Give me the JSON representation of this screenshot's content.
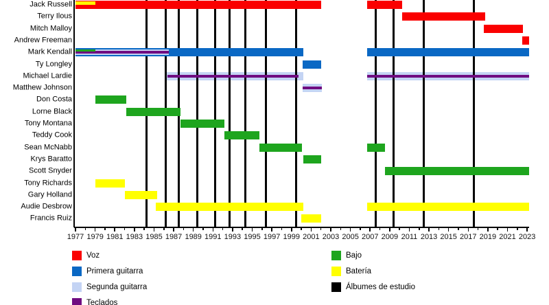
{
  "chart_data": {
    "type": "timeline",
    "title": "",
    "x_axis": {
      "start": 1977,
      "end": 2023.2,
      "label_years": [
        1977,
        1979,
        1981,
        1983,
        1985,
        1987,
        1989,
        1991,
        1993,
        1995,
        1997,
        1999,
        2001,
        2003,
        2005,
        2007,
        2009,
        2011,
        2013,
        2015,
        2017,
        2019,
        2021,
        2023
      ],
      "minor_tick_step": 1
    },
    "colors": {
      "voz": "#fa0000",
      "primera_guitarra": "#0a68c4",
      "segunda_guitarra": "#c4d4f4",
      "teclados": "#6f0c81",
      "bajo": "#1ea51e",
      "bateria": "#ffff00",
      "albumes": "#000000"
    },
    "legend": [
      {
        "label": "Voz",
        "role": "voz"
      },
      {
        "label": "Primera guitarra",
        "role": "primera_guitarra"
      },
      {
        "label": "Segunda guitarra",
        "role": "segunda_guitarra"
      },
      {
        "label": "Teclados",
        "role": "teclados"
      },
      {
        "label": "Bajo",
        "role": "bajo"
      },
      {
        "label": "Batería",
        "role": "bateria"
      },
      {
        "label": "Álbumes de estudio",
        "role": "albumes"
      }
    ],
    "album_lines_years": [
      1984.2,
      1986.2,
      1987.5,
      1989.4,
      1991.2,
      1992.7,
      1994.3,
      1996.4,
      1999.5,
      2007.6,
      2009.4,
      2012.5,
      2017.6
    ],
    "members": [
      {
        "name": "Jack Russell",
        "segments": [
          {
            "role": "voz",
            "start": 1977,
            "end": 2002
          },
          {
            "role": "voz",
            "start": 2006.7,
            "end": 2010.3
          },
          {
            "role": "bateria",
            "start": 1977,
            "end": 1979,
            "band": [
              0.1,
              0.5
            ]
          }
        ]
      },
      {
        "name": "Terry Ilous",
        "segments": [
          {
            "role": "voz",
            "start": 2010.3,
            "end": 2018.7
          }
        ]
      },
      {
        "name": "Mitch Malloy",
        "segments": [
          {
            "role": "voz",
            "start": 2018.6,
            "end": 2022.6
          }
        ]
      },
      {
        "name": "Andrew Freeman",
        "segments": [
          {
            "role": "voz",
            "start": 2022.5,
            "end": 2023.2
          }
        ]
      },
      {
        "name": "Mark Kendall",
        "segments": [
          {
            "role": "primera_guitarra",
            "start": 1977,
            "end": 2000.2
          },
          {
            "role": "segunda_guitarra",
            "start": 1977,
            "end": 1986.5,
            "band": [
              0.17,
              0.83
            ]
          },
          {
            "role": "teclados",
            "start": 1977,
            "end": 1986.5,
            "band": [
              0.33,
              0.67
            ]
          },
          {
            "role": "bajo",
            "start": 1977,
            "end": 1979,
            "band": [
              0.17,
              0.44
            ]
          },
          {
            "role": "primera_guitarra",
            "start": 2006.7,
            "end": 2023.2
          }
        ]
      },
      {
        "name": "Ty Longley",
        "segments": [
          {
            "role": "primera_guitarra",
            "start": 2000.1,
            "end": 2002
          }
        ]
      },
      {
        "name": "Michael Lardie",
        "segments": [
          {
            "role": "segunda_guitarra",
            "start": 1986.1,
            "end": 2000.2,
            "behind_lines": true
          },
          {
            "role": "teclados",
            "start": 1986.4,
            "end": 1999.7,
            "band": [
              0.33,
              0.67
            ]
          },
          {
            "role": "segunda_guitarra",
            "start": 2006.7,
            "end": 2023.2,
            "behind_lines": true
          },
          {
            "role": "teclados",
            "start": 2006.7,
            "end": 2023.2,
            "band": [
              0.33,
              0.67
            ]
          }
        ]
      },
      {
        "name": "Matthew Johnson",
        "segments": [
          {
            "role": "segunda_guitarra",
            "start": 2000.1,
            "end": 2002.1,
            "behind_lines": true
          },
          {
            "role": "teclados",
            "start": 2000.1,
            "end": 2002.1,
            "band": [
              0.33,
              0.67
            ]
          }
        ]
      },
      {
        "name": "Don Costa",
        "segments": [
          {
            "role": "bajo",
            "start": 1979,
            "end": 1982.2
          }
        ]
      },
      {
        "name": "Lorne Black",
        "segments": [
          {
            "role": "bajo",
            "start": 1982.2,
            "end": 1987.7
          }
        ]
      },
      {
        "name": "Tony Montana",
        "segments": [
          {
            "role": "bajo",
            "start": 1987.7,
            "end": 1992.2
          }
        ]
      },
      {
        "name": "Teddy Cook",
        "segments": [
          {
            "role": "bajo",
            "start": 1992.2,
            "end": 1995.7
          }
        ]
      },
      {
        "name": "Sean McNabb",
        "segments": [
          {
            "role": "bajo",
            "start": 1995.7,
            "end": 2000.1
          },
          {
            "role": "bajo",
            "start": 2006.7,
            "end": 2008.5
          }
        ]
      },
      {
        "name": "Krys Baratto",
        "segments": [
          {
            "role": "bajo",
            "start": 2000.2,
            "end": 2002
          }
        ]
      },
      {
        "name": "Scott Snyder",
        "segments": [
          {
            "role": "bajo",
            "start": 2008.5,
            "end": 2023.2
          }
        ]
      },
      {
        "name": "Tony Richards",
        "segments": [
          {
            "role": "bateria",
            "start": 1979,
            "end": 1982
          }
        ]
      },
      {
        "name": "Gary Holland",
        "segments": [
          {
            "role": "bateria",
            "start": 1982,
            "end": 1985.3
          }
        ]
      },
      {
        "name": "Audie Desbrow",
        "segments": [
          {
            "role": "bateria",
            "start": 1985.2,
            "end": 2000.2
          },
          {
            "role": "bateria",
            "start": 2006.7,
            "end": 2023.2
          }
        ]
      },
      {
        "name": "Francis Ruiz",
        "segments": [
          {
            "role": "bateria",
            "start": 2000,
            "end": 2002
          }
        ]
      }
    ]
  }
}
